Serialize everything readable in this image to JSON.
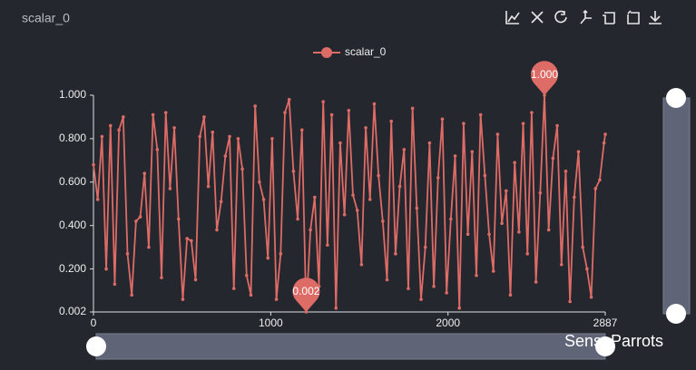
{
  "chart_data": {
    "type": "line",
    "title": "scalar_0",
    "watermark": "SenseParrots",
    "x": [
      0,
      24,
      48,
      72,
      96,
      120,
      144,
      168,
      192,
      216,
      240,
      264,
      288,
      312,
      336,
      360,
      384,
      408,
      432,
      456,
      480,
      504,
      528,
      552,
      576,
      600,
      624,
      648,
      672,
      696,
      720,
      744,
      768,
      792,
      816,
      840,
      864,
      888,
      912,
      936,
      960,
      984,
      1008,
      1032,
      1056,
      1080,
      1104,
      1128,
      1152,
      1176,
      1200,
      1224,
      1248,
      1272,
      1296,
      1320,
      1344,
      1368,
      1392,
      1416,
      1440,
      1464,
      1488,
      1512,
      1536,
      1560,
      1584,
      1608,
      1632,
      1656,
      1680,
      1704,
      1728,
      1752,
      1776,
      1800,
      1824,
      1848,
      1872,
      1896,
      1920,
      1944,
      1968,
      1992,
      2016,
      2040,
      2064,
      2088,
      2112,
      2136,
      2160,
      2184,
      2208,
      2232,
      2256,
      2280,
      2304,
      2328,
      2352,
      2376,
      2400,
      2424,
      2448,
      2472,
      2496,
      2520,
      2544,
      2568,
      2592,
      2616,
      2640,
      2664,
      2688,
      2712,
      2736,
      2760,
      2784,
      2808,
      2832,
      2856,
      2880,
      2887
    ],
    "series": [
      {
        "name": "scalar_0",
        "color": "#dd6b66",
        "values": [
          0.68,
          0.52,
          0.81,
          0.2,
          0.86,
          0.13,
          0.84,
          0.9,
          0.27,
          0.08,
          0.42,
          0.44,
          0.64,
          0.3,
          0.91,
          0.75,
          0.16,
          0.92,
          0.57,
          0.85,
          0.43,
          0.06,
          0.34,
          0.33,
          0.15,
          0.81,
          0.9,
          0.58,
          0.83,
          0.38,
          0.51,
          0.72,
          0.81,
          0.11,
          0.8,
          0.66,
          0.17,
          0.08,
          0.95,
          0.6,
          0.52,
          0.25,
          0.8,
          0.06,
          0.27,
          0.92,
          0.98,
          0.65,
          0.43,
          0.84,
          0.002,
          0.38,
          0.53,
          0.12,
          0.97,
          0.31,
          0.91,
          0.02,
          0.78,
          0.45,
          0.93,
          0.54,
          0.47,
          0.22,
          0.85,
          0.52,
          0.96,
          0.63,
          0.42,
          0.15,
          0.88,
          0.27,
          0.58,
          0.75,
          0.11,
          0.94,
          0.48,
          0.06,
          0.3,
          0.78,
          0.12,
          0.62,
          0.89,
          0.09,
          0.43,
          0.72,
          0.02,
          0.87,
          0.36,
          0.74,
          0.17,
          0.91,
          0.63,
          0.36,
          0.19,
          0.82,
          0.41,
          0.56,
          0.08,
          0.69,
          0.37,
          0.87,
          0.27,
          0.92,
          0.14,
          0.55,
          1.0,
          0.38,
          0.71,
          0.86,
          0.22,
          0.65,
          0.05,
          0.53,
          0.74,
          0.3,
          0.2,
          0.07,
          0.57,
          0.61,
          0.78,
          0.82
        ]
      }
    ],
    "mark_points": [
      {
        "label": "1.000",
        "x": 2544,
        "value": 1.0
      },
      {
        "label": "0.002",
        "x": 1200,
        "value": 0.002
      }
    ],
    "xlim": [
      0,
      2887
    ],
    "xticks": [
      0,
      1000,
      2000,
      2887
    ],
    "ylim": [
      0.002,
      1.0
    ],
    "yticks": [
      {
        "value": 0.002,
        "label": "0.002"
      },
      {
        "value": 0.2,
        "label": "0.200"
      },
      {
        "value": 0.4,
        "label": "0.400"
      },
      {
        "value": 0.6,
        "label": "0.600"
      },
      {
        "value": 0.8,
        "label": "0.800"
      },
      {
        "value": 1.0,
        "label": "1.000"
      }
    ],
    "grid": false,
    "legend": "top"
  }
}
